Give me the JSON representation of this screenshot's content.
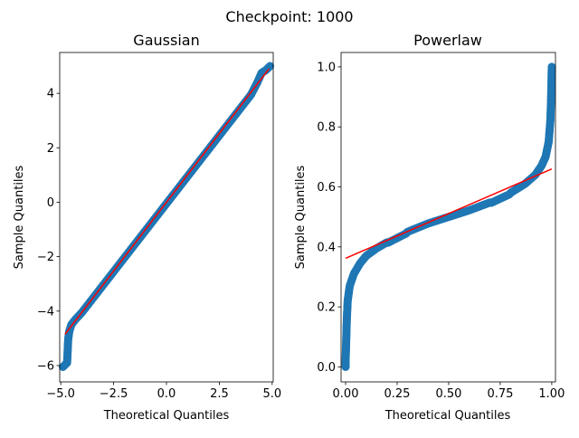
{
  "suptitle": "Checkpoint: 1000",
  "colors": {
    "points": "#1f77b4",
    "line": "#ff0000"
  },
  "chart_data": [
    {
      "type": "scatter",
      "title": "Gaussian",
      "xlabel": "Theoretical Quantiles",
      "ylabel": "Sample Quantiles",
      "xlim": [
        -5.05,
        5.05
      ],
      "ylim": [
        -6.6,
        5.5
      ],
      "xticks": [
        -5,
        -2.5,
        0,
        2.5,
        5
      ],
      "xtick_labels": [
        "−5.0",
        "−2.5",
        "0.0",
        "2.5",
        "5.0"
      ],
      "yticks": [
        -6,
        -4,
        -2,
        0,
        2,
        4
      ],
      "ytick_labels": [
        "−6",
        "−4",
        "−2",
        "0",
        "2",
        "4"
      ],
      "points": [
        [
          -4.9,
          -6.05
        ],
        [
          -4.7,
          -5.9
        ],
        [
          -4.65,
          -5.05
        ],
        [
          -4.6,
          -4.75
        ],
        [
          -4.5,
          -4.5
        ],
        [
          -4.3,
          -4.3
        ],
        [
          -4.0,
          -4.05
        ],
        [
          -3.5,
          -3.55
        ],
        [
          -3.0,
          -3.05
        ],
        [
          -2.5,
          -2.55
        ],
        [
          -2.0,
          -2.05
        ],
        [
          -1.5,
          -1.55
        ],
        [
          -1.0,
          -1.05
        ],
        [
          -0.5,
          -0.55
        ],
        [
          0,
          -0.05
        ],
        [
          0.5,
          0.45
        ],
        [
          1.0,
          0.95
        ],
        [
          1.5,
          1.45
        ],
        [
          2.0,
          1.95
        ],
        [
          2.5,
          2.45
        ],
        [
          3.0,
          2.95
        ],
        [
          3.5,
          3.45
        ],
        [
          4.0,
          3.95
        ],
        [
          4.3,
          4.4
        ],
        [
          4.5,
          4.75
        ],
        [
          4.7,
          4.85
        ],
        [
          4.9,
          5.0
        ]
      ],
      "fit_line": [
        [
          -4.8,
          -4.85
        ],
        [
          4.85,
          4.9
        ]
      ]
    },
    {
      "type": "scatter",
      "title": "Powerlaw",
      "xlabel": "Theoretical Quantiles",
      "ylabel": "Sample Quantiles",
      "xlim": [
        -0.022,
        1.018
      ],
      "ylim": [
        -0.05,
        1.048
      ],
      "xticks": [
        0,
        0.25,
        0.5,
        0.75,
        1.0
      ],
      "xtick_labels": [
        "0.00",
        "0.25",
        "0.50",
        "0.75",
        "1.00"
      ],
      "yticks": [
        0,
        0.2,
        0.4,
        0.6,
        0.8,
        1.0
      ],
      "ytick_labels": [
        "0.0",
        "0.2",
        "0.4",
        "0.6",
        "0.8",
        "1.0"
      ],
      "points": [
        [
          0,
          0.0
        ],
        [
          0,
          0.02
        ],
        [
          0.003,
          0.09
        ],
        [
          0.006,
          0.16
        ],
        [
          0.01,
          0.22
        ],
        [
          0.02,
          0.27
        ],
        [
          0.04,
          0.31
        ],
        [
          0.07,
          0.345
        ],
        [
          0.1,
          0.37
        ],
        [
          0.15,
          0.395
        ],
        [
          0.2,
          0.415
        ],
        [
          0.3,
          0.45
        ],
        [
          0.4,
          0.478
        ],
        [
          0.5,
          0.5
        ],
        [
          0.6,
          0.522
        ],
        [
          0.7,
          0.548
        ],
        [
          0.8,
          0.58
        ],
        [
          0.87,
          0.61
        ],
        [
          0.92,
          0.64
        ],
        [
          0.95,
          0.67
        ],
        [
          0.97,
          0.7
        ],
        [
          0.985,
          0.75
        ],
        [
          0.993,
          0.82
        ],
        [
          0.997,
          0.9
        ],
        [
          1.0,
          1.0
        ]
      ],
      "fit_line": [
        [
          0,
          0.362
        ],
        [
          1,
          0.66
        ]
      ]
    }
  ]
}
